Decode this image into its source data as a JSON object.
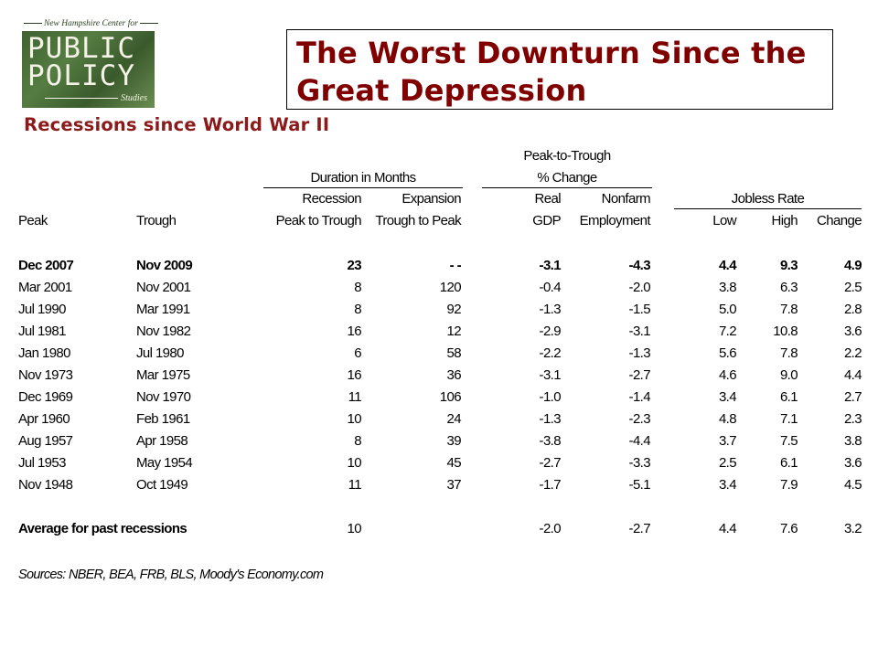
{
  "logo": {
    "top_text": "New Hampshire Center for",
    "line1": "PUBLIC",
    "line2": "POLICY",
    "line3": "Studies"
  },
  "title": "The Worst Downturn Since the Great Depression",
  "subtitle": "Recessions since World War II",
  "table": {
    "group_headers": {
      "duration": "Duration in Months",
      "peak_to_trough_1": "Peak-to-Trough",
      "peak_to_trough_2": "% Change",
      "jobless": "Jobless Rate"
    },
    "sub_headers_top": {
      "recession": "Recession",
      "expansion": "Expansion",
      "real": "Real",
      "nonfarm": "Nonfarm"
    },
    "column_headers": {
      "peak": "Peak",
      "trough": "Trough",
      "peak_to_trough": "Peak to Trough",
      "trough_to_peak": "Trough to Peak",
      "gdp": "GDP",
      "employment": "Employment",
      "low": "Low",
      "high": "High",
      "change": "Change"
    },
    "rows": [
      {
        "peak": "Dec 2007",
        "trough": "Nov 2009",
        "recession": "23",
        "expansion": "- -",
        "gdp": "-3.1",
        "employment": "-4.3",
        "low": "4.4",
        "high": "9.3",
        "change": "4.9",
        "bold": true
      },
      {
        "peak": "Mar 2001",
        "trough": "Nov 2001",
        "recession": "8",
        "expansion": "120",
        "gdp": "-0.4",
        "employment": "-2.0",
        "low": "3.8",
        "high": "6.3",
        "change": "2.5"
      },
      {
        "peak": "Jul 1990",
        "trough": "Mar 1991",
        "recession": "8",
        "expansion": "92",
        "gdp": "-1.3",
        "employment": "-1.5",
        "low": "5.0",
        "high": "7.8",
        "change": "2.8"
      },
      {
        "peak": "Jul 1981",
        "trough": "Nov 1982",
        "recession": "16",
        "expansion": "12",
        "gdp": "-2.9",
        "employment": "-3.1",
        "low": "7.2",
        "high": "10.8",
        "change": "3.6"
      },
      {
        "peak": "Jan 1980",
        "trough": "Jul 1980",
        "recession": "6",
        "expansion": "58",
        "gdp": "-2.2",
        "employment": "-1.3",
        "low": "5.6",
        "high": "7.8",
        "change": "2.2"
      },
      {
        "peak": "Nov 1973",
        "trough": "Mar 1975",
        "recession": "16",
        "expansion": "36",
        "gdp": "-3.1",
        "employment": "-2.7",
        "low": "4.6",
        "high": "9.0",
        "change": "4.4"
      },
      {
        "peak": "Dec 1969",
        "trough": "Nov 1970",
        "recession": "11",
        "expansion": "106",
        "gdp": "-1.0",
        "employment": "-1.4",
        "low": "3.4",
        "high": "6.1",
        "change": "2.7"
      },
      {
        "peak": "Apr 1960",
        "trough": "Feb 1961",
        "recession": "10",
        "expansion": "24",
        "gdp": "-1.3",
        "employment": "-2.3",
        "low": "4.8",
        "high": "7.1",
        "change": "2.3"
      },
      {
        "peak": "Aug 1957",
        "trough": "Apr 1958",
        "recession": "8",
        "expansion": "39",
        "gdp": "-3.8",
        "employment": "-4.4",
        "low": "3.7",
        "high": "7.5",
        "change": "3.8"
      },
      {
        "peak": "Jul 1953",
        "trough": "May 1954",
        "recession": "10",
        "expansion": "45",
        "gdp": "-2.7",
        "employment": "-3.3",
        "low": "2.5",
        "high": "6.1",
        "change": "3.6"
      },
      {
        "peak": "Nov 1948",
        "trough": "Oct 1949",
        "recession": "11",
        "expansion": "37",
        "gdp": "-1.7",
        "employment": "-5.1",
        "low": "3.4",
        "high": "7.9",
        "change": "4.5"
      }
    ],
    "average": {
      "label": "Average for past recessions",
      "recession": "10",
      "gdp": "-2.0",
      "employment": "-2.7",
      "low": "4.4",
      "high": "7.6",
      "change": "3.2"
    }
  },
  "sources": "Sources: NBER, BEA, FRB, BLS, Moody's Economy.com",
  "colors": {
    "title": "#800000",
    "subtitle": "#8b1a1a",
    "logo_green": "#4a6e38"
  }
}
